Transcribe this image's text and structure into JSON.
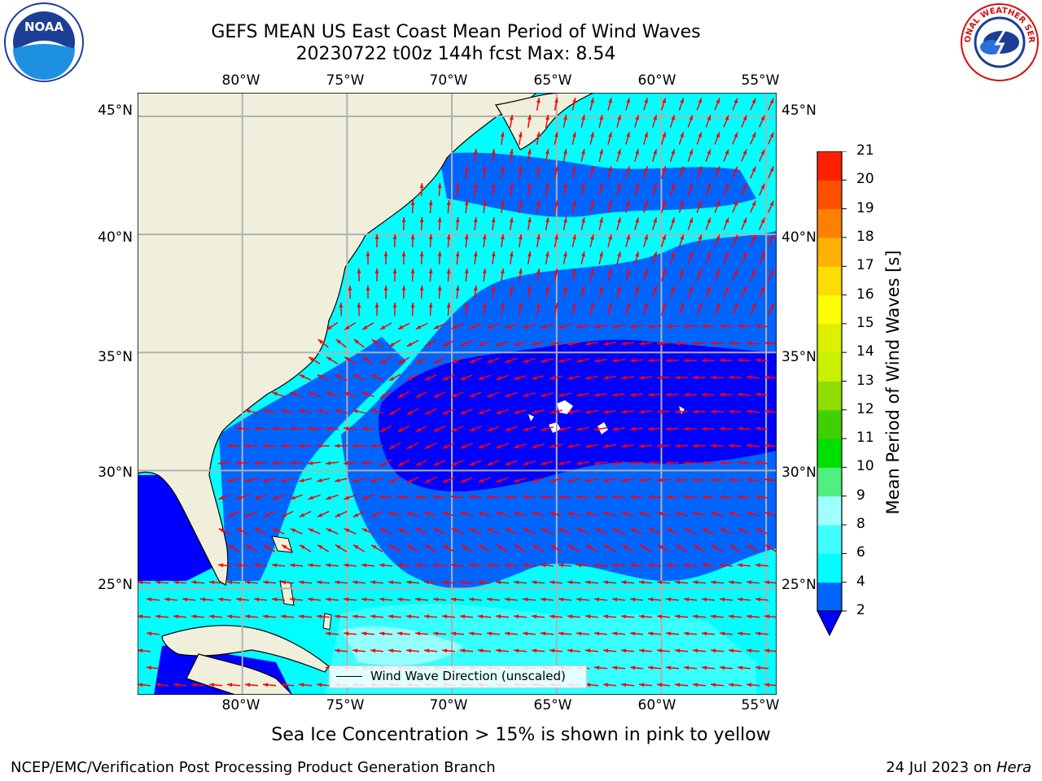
{
  "title": {
    "line1": "GEFS MEAN US East Coast Mean Period of Wind Waves",
    "line2": "20230722 t00z 144h fcst   Max: 8.54"
  },
  "logos": {
    "left_text": "NOAA",
    "right_text": "NATIONAL WEATHER SERVICE"
  },
  "map": {
    "lon_ticks": [
      "80°W",
      "75°W",
      "70°W",
      "65°W",
      "60°W",
      "55°W"
    ],
    "lat_ticks": [
      "45°N",
      "40°N",
      "35°N",
      "30°N",
      "25°N"
    ],
    "lon_range": [
      -85,
      -54.5
    ],
    "lat_range": [
      20.5,
      46
    ],
    "legend_label": "Wind Wave Direction (unscaled)"
  },
  "colorbar": {
    "label": "Mean Period of Wind Waves [s]",
    "levels": [
      "2",
      "4",
      "6",
      "8",
      "9",
      "10",
      "11",
      "12",
      "13",
      "14",
      "15",
      "16",
      "17",
      "18",
      "19",
      "20",
      "21"
    ],
    "colors": [
      "#0064ff",
      "#00ffff",
      "#40ffff",
      "#a0ffff",
      "#50f080",
      "#00e000",
      "#40d000",
      "#90dd00",
      "#c8f000",
      "#ddf000",
      "#ffff00",
      "#ffdd00",
      "#ffb000",
      "#ff8000",
      "#ff5000",
      "#ff2000"
    ],
    "extend_color": "#0000ff"
  },
  "subtitle": "Sea Ice Concentration > 15% is shown in pink to yellow",
  "footer": {
    "left": "NCEP/EMC/Verification Post Processing Product Generation Branch",
    "right_prefix": "24 Jul 2023 on ",
    "right_machine": "Hera"
  }
}
